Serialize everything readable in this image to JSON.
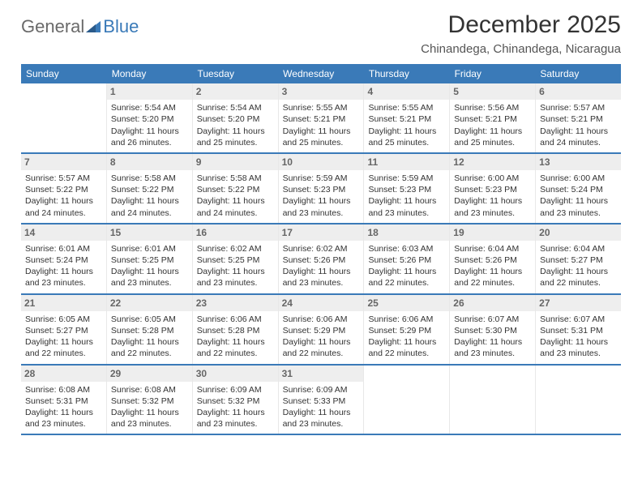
{
  "logo": {
    "part1": "General",
    "part2": "Blue"
  },
  "title": "December 2025",
  "location": "Chinandega, Chinandega, Nicaragua",
  "colors": {
    "header_blue": "#3a7ab8",
    "daynum_bg": "#eeeeee",
    "text": "#333333",
    "logo_gray": "#6a6a6a"
  },
  "daysOfWeek": [
    "Sunday",
    "Monday",
    "Tuesday",
    "Wednesday",
    "Thursday",
    "Friday",
    "Saturday"
  ],
  "weeks": [
    [
      {
        "num": "",
        "sunrise": "",
        "sunset": "",
        "daylight1": "",
        "daylight2": ""
      },
      {
        "num": "1",
        "sunrise": "Sunrise: 5:54 AM",
        "sunset": "Sunset: 5:20 PM",
        "daylight1": "Daylight: 11 hours",
        "daylight2": "and 26 minutes."
      },
      {
        "num": "2",
        "sunrise": "Sunrise: 5:54 AM",
        "sunset": "Sunset: 5:20 PM",
        "daylight1": "Daylight: 11 hours",
        "daylight2": "and 25 minutes."
      },
      {
        "num": "3",
        "sunrise": "Sunrise: 5:55 AM",
        "sunset": "Sunset: 5:21 PM",
        "daylight1": "Daylight: 11 hours",
        "daylight2": "and 25 minutes."
      },
      {
        "num": "4",
        "sunrise": "Sunrise: 5:55 AM",
        "sunset": "Sunset: 5:21 PM",
        "daylight1": "Daylight: 11 hours",
        "daylight2": "and 25 minutes."
      },
      {
        "num": "5",
        "sunrise": "Sunrise: 5:56 AM",
        "sunset": "Sunset: 5:21 PM",
        "daylight1": "Daylight: 11 hours",
        "daylight2": "and 25 minutes."
      },
      {
        "num": "6",
        "sunrise": "Sunrise: 5:57 AM",
        "sunset": "Sunset: 5:21 PM",
        "daylight1": "Daylight: 11 hours",
        "daylight2": "and 24 minutes."
      }
    ],
    [
      {
        "num": "7",
        "sunrise": "Sunrise: 5:57 AM",
        "sunset": "Sunset: 5:22 PM",
        "daylight1": "Daylight: 11 hours",
        "daylight2": "and 24 minutes."
      },
      {
        "num": "8",
        "sunrise": "Sunrise: 5:58 AM",
        "sunset": "Sunset: 5:22 PM",
        "daylight1": "Daylight: 11 hours",
        "daylight2": "and 24 minutes."
      },
      {
        "num": "9",
        "sunrise": "Sunrise: 5:58 AM",
        "sunset": "Sunset: 5:22 PM",
        "daylight1": "Daylight: 11 hours",
        "daylight2": "and 24 minutes."
      },
      {
        "num": "10",
        "sunrise": "Sunrise: 5:59 AM",
        "sunset": "Sunset: 5:23 PM",
        "daylight1": "Daylight: 11 hours",
        "daylight2": "and 23 minutes."
      },
      {
        "num": "11",
        "sunrise": "Sunrise: 5:59 AM",
        "sunset": "Sunset: 5:23 PM",
        "daylight1": "Daylight: 11 hours",
        "daylight2": "and 23 minutes."
      },
      {
        "num": "12",
        "sunrise": "Sunrise: 6:00 AM",
        "sunset": "Sunset: 5:23 PM",
        "daylight1": "Daylight: 11 hours",
        "daylight2": "and 23 minutes."
      },
      {
        "num": "13",
        "sunrise": "Sunrise: 6:00 AM",
        "sunset": "Sunset: 5:24 PM",
        "daylight1": "Daylight: 11 hours",
        "daylight2": "and 23 minutes."
      }
    ],
    [
      {
        "num": "14",
        "sunrise": "Sunrise: 6:01 AM",
        "sunset": "Sunset: 5:24 PM",
        "daylight1": "Daylight: 11 hours",
        "daylight2": "and 23 minutes."
      },
      {
        "num": "15",
        "sunrise": "Sunrise: 6:01 AM",
        "sunset": "Sunset: 5:25 PM",
        "daylight1": "Daylight: 11 hours",
        "daylight2": "and 23 minutes."
      },
      {
        "num": "16",
        "sunrise": "Sunrise: 6:02 AM",
        "sunset": "Sunset: 5:25 PM",
        "daylight1": "Daylight: 11 hours",
        "daylight2": "and 23 minutes."
      },
      {
        "num": "17",
        "sunrise": "Sunrise: 6:02 AM",
        "sunset": "Sunset: 5:26 PM",
        "daylight1": "Daylight: 11 hours",
        "daylight2": "and 23 minutes."
      },
      {
        "num": "18",
        "sunrise": "Sunrise: 6:03 AM",
        "sunset": "Sunset: 5:26 PM",
        "daylight1": "Daylight: 11 hours",
        "daylight2": "and 22 minutes."
      },
      {
        "num": "19",
        "sunrise": "Sunrise: 6:04 AM",
        "sunset": "Sunset: 5:26 PM",
        "daylight1": "Daylight: 11 hours",
        "daylight2": "and 22 minutes."
      },
      {
        "num": "20",
        "sunrise": "Sunrise: 6:04 AM",
        "sunset": "Sunset: 5:27 PM",
        "daylight1": "Daylight: 11 hours",
        "daylight2": "and 22 minutes."
      }
    ],
    [
      {
        "num": "21",
        "sunrise": "Sunrise: 6:05 AM",
        "sunset": "Sunset: 5:27 PM",
        "daylight1": "Daylight: 11 hours",
        "daylight2": "and 22 minutes."
      },
      {
        "num": "22",
        "sunrise": "Sunrise: 6:05 AM",
        "sunset": "Sunset: 5:28 PM",
        "daylight1": "Daylight: 11 hours",
        "daylight2": "and 22 minutes."
      },
      {
        "num": "23",
        "sunrise": "Sunrise: 6:06 AM",
        "sunset": "Sunset: 5:28 PM",
        "daylight1": "Daylight: 11 hours",
        "daylight2": "and 22 minutes."
      },
      {
        "num": "24",
        "sunrise": "Sunrise: 6:06 AM",
        "sunset": "Sunset: 5:29 PM",
        "daylight1": "Daylight: 11 hours",
        "daylight2": "and 22 minutes."
      },
      {
        "num": "25",
        "sunrise": "Sunrise: 6:06 AM",
        "sunset": "Sunset: 5:29 PM",
        "daylight1": "Daylight: 11 hours",
        "daylight2": "and 22 minutes."
      },
      {
        "num": "26",
        "sunrise": "Sunrise: 6:07 AM",
        "sunset": "Sunset: 5:30 PM",
        "daylight1": "Daylight: 11 hours",
        "daylight2": "and 23 minutes."
      },
      {
        "num": "27",
        "sunrise": "Sunrise: 6:07 AM",
        "sunset": "Sunset: 5:31 PM",
        "daylight1": "Daylight: 11 hours",
        "daylight2": "and 23 minutes."
      }
    ],
    [
      {
        "num": "28",
        "sunrise": "Sunrise: 6:08 AM",
        "sunset": "Sunset: 5:31 PM",
        "daylight1": "Daylight: 11 hours",
        "daylight2": "and 23 minutes."
      },
      {
        "num": "29",
        "sunrise": "Sunrise: 6:08 AM",
        "sunset": "Sunset: 5:32 PM",
        "daylight1": "Daylight: 11 hours",
        "daylight2": "and 23 minutes."
      },
      {
        "num": "30",
        "sunrise": "Sunrise: 6:09 AM",
        "sunset": "Sunset: 5:32 PM",
        "daylight1": "Daylight: 11 hours",
        "daylight2": "and 23 minutes."
      },
      {
        "num": "31",
        "sunrise": "Sunrise: 6:09 AM",
        "sunset": "Sunset: 5:33 PM",
        "daylight1": "Daylight: 11 hours",
        "daylight2": "and 23 minutes."
      },
      {
        "num": "",
        "sunrise": "",
        "sunset": "",
        "daylight1": "",
        "daylight2": ""
      },
      {
        "num": "",
        "sunrise": "",
        "sunset": "",
        "daylight1": "",
        "daylight2": ""
      },
      {
        "num": "",
        "sunrise": "",
        "sunset": "",
        "daylight1": "",
        "daylight2": ""
      }
    ]
  ]
}
